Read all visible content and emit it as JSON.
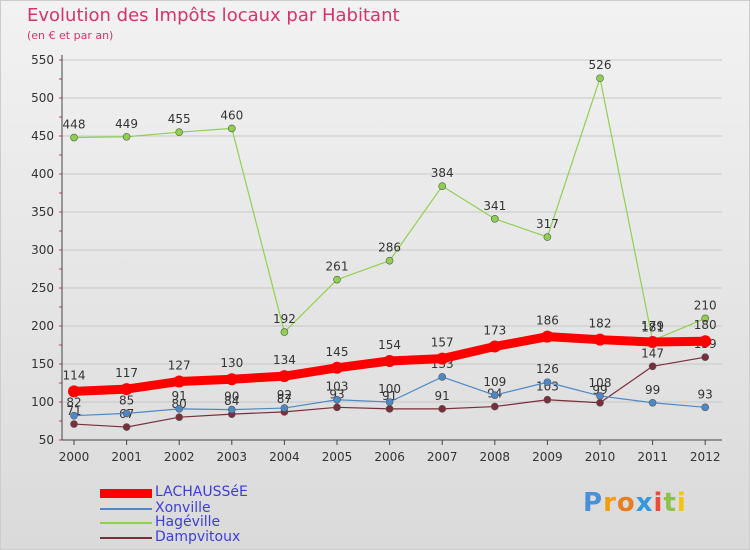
{
  "header": {
    "title": "Evolution des Impôts locaux par Habitant",
    "subtitle": "(en € et par an)"
  },
  "chart_data": {
    "type": "line",
    "title": "Evolution des Impôts locaux par Habitant",
    "subtitle": "(en € et par an)",
    "xlabel": "",
    "ylabel": "",
    "ylim": [
      50,
      550
    ],
    "yticks": [
      50,
      100,
      150,
      200,
      250,
      300,
      350,
      400,
      450,
      500,
      550
    ],
    "grid": true,
    "x": [
      "2000",
      "2001",
      "2002",
      "2003",
      "2004",
      "2005",
      "2006",
      "2007",
      "2008",
      "2009",
      "2010",
      "2011",
      "2012"
    ],
    "series": [
      {
        "name": "Hagéville",
        "color": "#8fd14f",
        "values": [
          448,
          449,
          455,
          460,
          192,
          261,
          286,
          384,
          341,
          317,
          526,
          181,
          210
        ]
      },
      {
        "name": "Dampvitoux",
        "color": "#7a2e3a",
        "values": [
          71,
          67,
          80,
          84,
          87,
          93,
          91,
          91,
          94,
          103,
          99,
          147,
          159
        ]
      },
      {
        "name": "Xonville",
        "color": "#4f88c6",
        "values": [
          82,
          85,
          91,
          90,
          92,
          103,
          100,
          133,
          109,
          126,
          108,
          99,
          93
        ]
      },
      {
        "name": "LACHAUSSéE",
        "color": "#ff0000",
        "values": [
          114,
          117,
          127,
          130,
          134,
          145,
          154,
          157,
          173,
          186,
          182,
          179,
          180
        ]
      }
    ],
    "legend": [
      "LACHAUSSéE",
      "Xonville",
      "Hagéville",
      "Dampvitoux"
    ],
    "legend_position": "bottom-left"
  },
  "legend": [
    {
      "label": "LACHAUSSéE",
      "color": "#ff0000"
    },
    {
      "label": "Xonville",
      "color": "#4f88c6"
    },
    {
      "label": "Hagéville",
      "color": "#8fd14f"
    },
    {
      "label": "Dampvitoux",
      "color": "#7a2e3a"
    }
  ],
  "logo": {
    "letters": [
      "P",
      "r",
      "o",
      "x",
      "i",
      "t",
      "i"
    ],
    "colors": [
      "#4a90d9",
      "#f39c12",
      "#e67e22",
      "#3498db",
      "#e74c3c",
      "#8bc34a",
      "#f1c40f"
    ]
  }
}
